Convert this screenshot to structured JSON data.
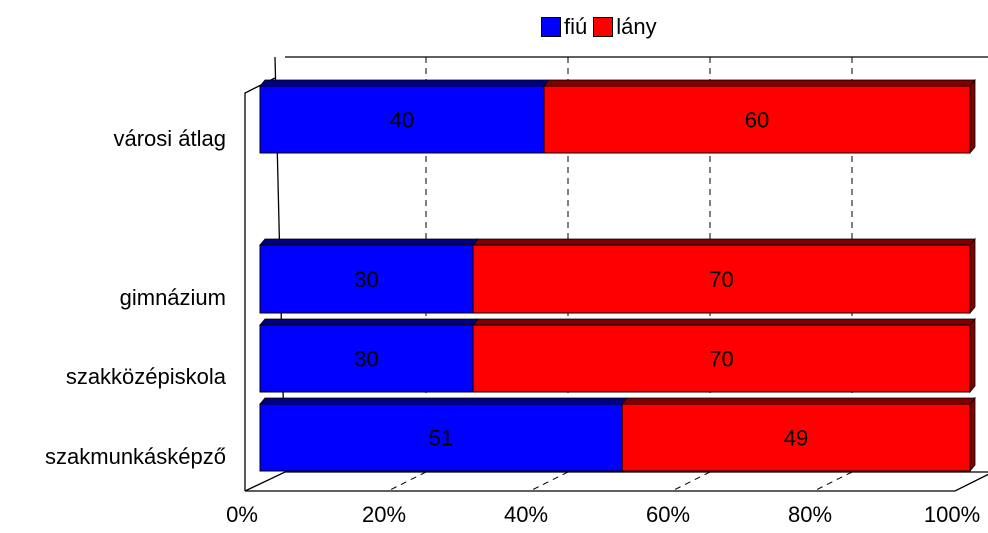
{
  "chart_data": {
    "type": "bar",
    "orientation": "horizontal",
    "stacked": "percent",
    "style": "3d",
    "categories": [
      "városi átlag",
      "gimnázium",
      "szakközépiskola",
      "szakmunkásképző"
    ],
    "series": [
      {
        "name": "fiú",
        "values": [
          40,
          30,
          30,
          51
        ],
        "color": "#0000ff"
      },
      {
        "name": "lány",
        "values": [
          60,
          70,
          70,
          49
        ],
        "color": "#ff0000"
      }
    ],
    "x_ticks": [
      "0%",
      "20%",
      "40%",
      "60%",
      "80%",
      "100%"
    ],
    "xlim": [
      0,
      100
    ],
    "grid": "vertical-dashed",
    "legend_position": "top"
  }
}
